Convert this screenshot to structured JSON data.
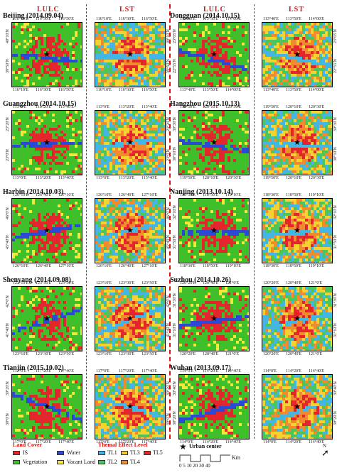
{
  "headers": {
    "lulc": "LULC",
    "lst": "LST"
  },
  "cities": [
    {
      "name": "Beijing (2014.09.04)",
      "lulc_top": [
        "116°10'E",
        "116°30'E",
        "116°50'E"
      ],
      "lulc_bottom": [
        "116°10'E",
        "116°30'E",
        "116°50'E"
      ],
      "lulc_left": [
        "40°10'N",
        "39°50'N"
      ],
      "lst_top": [
        "116°10'E",
        "116°30'E",
        "116°50'E"
      ],
      "lst_bottom": [
        "116°10'E",
        "116°30'E",
        "116°50'E"
      ],
      "lst_right": [
        "40°10'N",
        "39°50'N"
      ]
    },
    {
      "name": "Dongguan (2014.10.15)",
      "lulc_top": [
        "113°40'E",
        "113°50'E",
        "114°00'E"
      ],
      "lulc_bottom": [
        "113°40'E",
        "113°50'E",
        "114°00'E"
      ],
      "lulc_left": [
        "23°05'N",
        "22°55'N"
      ],
      "lst_top": [
        "113°40'E",
        "113°50'E",
        "114°00'E"
      ],
      "lst_bottom": [
        "113°40'E",
        "113°50'E",
        "114°00'E"
      ],
      "lst_right": [
        "23°05'N",
        "22°55'N"
      ]
    },
    {
      "name": "Guangzhou (2014.10.15)",
      "lulc_top": [
        "113°0'E",
        "113°20'E",
        "113°40'E"
      ],
      "lulc_bottom": [
        "113°0'E",
        "113°20'E",
        "113°40'E"
      ],
      "lulc_left": [
        "23°20'N",
        "23°0'N"
      ],
      "lst_top": [
        "113°0'E",
        "113°20'E",
        "113°40'E"
      ],
      "lst_bottom": [
        "113°0'E",
        "113°20'E",
        "113°40'E"
      ],
      "lst_right": [
        "23°20'N",
        "23°0'N"
      ]
    },
    {
      "name": "Hangzhou (2015.10.13)",
      "lulc_top": [
        "119°50'E",
        "120°10'E",
        "120°30'E"
      ],
      "lulc_bottom": [
        "119°50'E",
        "120°10'E",
        "120°30'E"
      ],
      "lulc_left": [
        "30°30'N",
        "30°10'N"
      ],
      "lst_top": [
        "119°50'E",
        "120°10'E",
        "120°30'E"
      ],
      "lst_bottom": [
        "119°50'E",
        "120°10'E",
        "120°30'E"
      ],
      "lst_right": [
        "30°30'N",
        "30°10'N"
      ]
    },
    {
      "name": "Harbin (2014.10.03)",
      "lulc_top": [
        "126°10'E",
        "126°40'E",
        "127°10'E"
      ],
      "lulc_bottom": [
        "126°10'E",
        "126°40'E",
        "127°10'E"
      ],
      "lulc_left": [
        "46°0'N",
        "45°40'N"
      ],
      "lst_top": [
        "126°10'E",
        "126°40'E",
        "127°10'E"
      ],
      "lst_bottom": [
        "126°10'E",
        "126°40'E",
        "127°10'E"
      ],
      "lst_right": [
        "46°0'N",
        "45°40'N"
      ]
    },
    {
      "name": "Nanjing (2013.10.14)",
      "lulc_top": [
        "118°30'E",
        "118°50'E",
        "119°10'E"
      ],
      "lulc_bottom": [
        "118°30'E",
        "118°50'E",
        "119°10'E"
      ],
      "lulc_left": [
        "32°10'N",
        "31°50'N"
      ],
      "lst_top": [
        "118°30'E",
        "118°50'E",
        "119°10'E"
      ],
      "lst_bottom": [
        "118°30'E",
        "118°50'E",
        "119°10'E"
      ],
      "lst_right": [
        "32°10'N",
        "31°50'N"
      ]
    },
    {
      "name": "Shenyang (2014.09.08)",
      "lulc_top": [
        "123°10'E",
        "123°30'E",
        "123°50'E"
      ],
      "lulc_bottom": [
        "123°10'E",
        "123°30'E",
        "123°50'E"
      ],
      "lulc_left": [
        "42°0'N",
        "41°40'N"
      ],
      "lst_top": [
        "123°10'E",
        "123°30'E",
        "123°50'E"
      ],
      "lst_bottom": [
        "123°10'E",
        "123°30'E",
        "123°50'E"
      ],
      "lst_right": [
        "42°0'N",
        "41°40'N"
      ]
    },
    {
      "name": "Suzhou (2014.10.26)",
      "lulc_top": [
        "120°20'E",
        "120°40'E",
        "121°0'E"
      ],
      "lulc_bottom": [
        "120°20'E",
        "120°40'E",
        "121°0'E"
      ],
      "lulc_left": [
        "31°30'N",
        "31°10'N"
      ],
      "lst_top": [
        "120°20'E",
        "120°40'E",
        "121°0'E"
      ],
      "lst_bottom": [
        "120°20'E",
        "120°40'E",
        "121°0'E"
      ],
      "lst_right": [
        "31°30'N",
        "31°10'N"
      ]
    },
    {
      "name": "Tianjin (2015.10.02)",
      "lulc_top": [
        "117°0'E",
        "117°20'E",
        "117°40'E"
      ],
      "lulc_bottom": [
        "117°0'E",
        "117°20'E",
        "117°40'E"
      ],
      "lulc_left": [
        "39°20'N",
        "39°0'N"
      ],
      "lst_top": [
        "117°0'E",
        "117°20'E",
        "117°40'E"
      ],
      "lst_bottom": [
        "117°0'E",
        "117°20'E",
        "117°40'E"
      ],
      "lst_right": [
        "39°20'N",
        "39°0'N"
      ]
    },
    {
      "name": "Wuhan (2013.09.17)",
      "lulc_top": [
        "114°0'E",
        "114°20'E",
        "114°40'E"
      ],
      "lulc_bottom": [
        "114°0'E",
        "114°20'E",
        "114°40'E"
      ],
      "lulc_left": [
        "30°40'N",
        "30°20'N"
      ],
      "lst_top": [
        "114°0'E",
        "114°20'E",
        "114°40'E"
      ],
      "lst_bottom": [
        "114°0'E",
        "114°20'E",
        "114°40'E"
      ],
      "lst_right": [
        "30°40'N",
        "30°20'N"
      ]
    }
  ],
  "legend": {
    "land_cover_title": "Land Cover",
    "land_cover": [
      {
        "label": "IS",
        "color": "#e3262b"
      },
      {
        "label": "Water",
        "color": "#2b49d6"
      },
      {
        "label": "Vegetation",
        "color": "#3fbf2a"
      },
      {
        "label": "Vacant Land",
        "color": "#f4e93a"
      }
    ],
    "thermal_title": "Themal Effect Level",
    "thermal": [
      {
        "label": "TL1",
        "color": "#43b6e3"
      },
      {
        "label": "TL3",
        "color": "#f5d230"
      },
      {
        "label": "TL5",
        "color": "#e3262b"
      },
      {
        "label": "TL2",
        "color": "#4cc65a"
      },
      {
        "label": "TL4",
        "color": "#f28a2e"
      }
    ],
    "urban_center_label": "Urban center",
    "scale_unit": "Km",
    "scale_numbers": "0 5 10  20  30  40",
    "north_label": "N"
  }
}
